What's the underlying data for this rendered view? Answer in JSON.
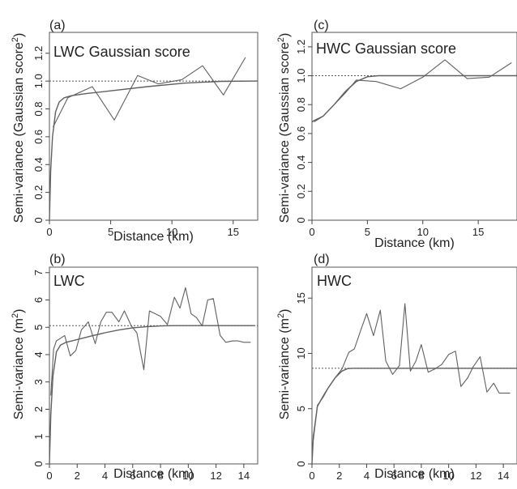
{
  "colors": {
    "data_line": "#606060",
    "model_curve": "#606060",
    "sill_line": "#555555",
    "axis": "#444444",
    "frame": "#555555"
  },
  "chart_data": [
    {
      "id": "a",
      "type": "line",
      "panel_label": "(a)",
      "title": "LWC Gaussian score",
      "xlabel": "Distance (km)",
      "ylabel": "Semi-variance (Gaussian score²)",
      "ylabel_main": "Semi-variance (Gaussian score",
      "ylabel_sup": "2",
      "ylabel_end": ")",
      "xlim": [
        0,
        17
      ],
      "ylim": [
        0,
        1.35
      ],
      "xticks": [
        0,
        5,
        10,
        15
      ],
      "xtick_labels": [
        "0",
        "5",
        "10",
        "15"
      ],
      "yticks": [
        0,
        0.2,
        0.4,
        0.6,
        0.8,
        1.0,
        1.2
      ],
      "ytick_labels": [
        "0",
        "0.2",
        "0.4",
        "0.6",
        "0.8",
        "1.0",
        "1.2"
      ],
      "series": [
        {
          "role": "empirical",
          "x": [
            0.3,
            1.5,
            3.5,
            5.3,
            7.2,
            8.9,
            10.8,
            12.5,
            14.2,
            16
          ],
          "y": [
            0.67,
            0.88,
            0.96,
            0.72,
            1.04,
            0.98,
            1.01,
            1.11,
            0.9,
            1.17
          ]
        },
        {
          "role": "model",
          "x": [
            0,
            0.1,
            0.25,
            0.5,
            0.8,
            1.2,
            1.8,
            3,
            5,
            8,
            11,
            14,
            17
          ],
          "y": [
            0,
            0.35,
            0.6,
            0.78,
            0.85,
            0.88,
            0.895,
            0.91,
            0.93,
            0.96,
            0.985,
            0.998,
            1.0
          ]
        }
      ],
      "sill": 1.0
    },
    {
      "id": "b",
      "type": "line",
      "panel_label": "(b)",
      "title": "LWC",
      "xlabel": "Distance (km)",
      "ylabel": "Semi-variance (m²)",
      "ylabel_main": "Semi-variance (m",
      "ylabel_sup": "2",
      "ylabel_end": ")",
      "xlim": [
        0,
        15
      ],
      "ylim": [
        0,
        7.2
      ],
      "xticks": [
        0,
        2,
        4,
        6,
        8,
        10,
        12,
        14
      ],
      "xtick_labels": [
        "0",
        "2",
        "4",
        "6",
        "8",
        "10",
        "12",
        "14"
      ],
      "yticks": [
        0,
        1,
        2,
        3,
        4,
        5,
        6,
        7
      ],
      "ytick_labels": [
        "0",
        "1",
        "2",
        "3",
        "4",
        "5",
        "6",
        "7"
      ],
      "series": [
        {
          "role": "empirical",
          "x": [
            0.1,
            0.3,
            0.5,
            0.8,
            1.1,
            1.5,
            1.9,
            2.3,
            2.8,
            3.3,
            3.7,
            4.1,
            4.5,
            5,
            5.4,
            5.9,
            6.3,
            6.8,
            7.2,
            7.6,
            8,
            8.5,
            9,
            9.4,
            9.8,
            10.2,
            10.6,
            11,
            11.4,
            11.8,
            12.3,
            12.7,
            13.2,
            13.6,
            14,
            14.5
          ],
          "y": [
            2.5,
            4.2,
            4.5,
            4.6,
            4.7,
            3.95,
            4.15,
            4.9,
            5.2,
            4.4,
            5.2,
            5.55,
            5.55,
            5.2,
            5.6,
            5.05,
            4.8,
            3.45,
            5.6,
            5.5,
            5.4,
            5.1,
            6.1,
            5.7,
            6.45,
            5.5,
            5.35,
            5.05,
            6.0,
            6.05,
            4.7,
            4.45,
            4.5,
            4.5,
            4.45,
            4.45
          ]
        },
        {
          "role": "model",
          "x": [
            0,
            0.1,
            0.25,
            0.5,
            0.8,
            1.2,
            2,
            3,
            4,
            5,
            6,
            7,
            8,
            9,
            10,
            12,
            14.8
          ],
          "y": [
            0,
            1.8,
            3.2,
            4.1,
            4.35,
            4.45,
            4.55,
            4.68,
            4.8,
            4.9,
            4.98,
            5.02,
            5.05,
            5.06,
            5.06,
            5.06,
            5.06
          ]
        }
      ],
      "sill": 5.06
    },
    {
      "id": "c",
      "type": "line",
      "panel_label": "(c)",
      "title": "HWC Gaussian score",
      "xlabel": "Distance (km)",
      "ylabel": "Semi-variance (Gaussian score²)",
      "ylabel_main": "Semi-variance (Gaussian score",
      "ylabel_sup": "2",
      "ylabel_end": ")",
      "xlim": [
        0,
        18.5
      ],
      "ylim": [
        0,
        1.3
      ],
      "xticks": [
        0,
        5,
        10,
        15
      ],
      "xtick_labels": [
        "0",
        "5",
        "10",
        "15"
      ],
      "yticks": [
        0,
        0.2,
        0.4,
        0.6,
        0.8,
        1.0,
        1.2
      ],
      "ytick_labels": [
        "0",
        "0.2",
        "0.4",
        "0.6",
        "0.8",
        "1.0",
        "1.2"
      ],
      "series": [
        {
          "role": "empirical",
          "x": [
            0.2,
            1,
            2,
            3,
            4,
            5.8,
            8,
            10,
            12,
            14,
            16,
            18
          ],
          "y": [
            0.68,
            0.72,
            0.8,
            0.88,
            0.97,
            0.96,
            0.91,
            0.99,
            1.11,
            0.98,
            0.99,
            1.09
          ]
        },
        {
          "role": "model",
          "x": [
            0,
            0.2,
            1,
            2,
            3,
            4,
            5,
            6,
            8,
            12,
            18.5
          ],
          "y": [
            0.68,
            0.69,
            0.72,
            0.8,
            0.89,
            0.96,
            0.993,
            1.0,
            1.0,
            1.0,
            1.0
          ]
        }
      ],
      "sill": 1.0
    },
    {
      "id": "d",
      "type": "line",
      "panel_label": "(d)",
      "title": "HWC",
      "xlabel": "Distance (km)",
      "ylabel": "Semi-variance (m²)",
      "ylabel_main": "Semi-variance (m",
      "ylabel_sup": "2",
      "ylabel_end": ")",
      "xlim": [
        0,
        15
      ],
      "ylim": [
        0,
        17.8
      ],
      "xticks": [
        0,
        2,
        4,
        6,
        8,
        10,
        12,
        14
      ],
      "xtick_labels": [
        "0",
        "2",
        "4",
        "6",
        "8",
        "10",
        "12",
        "14"
      ],
      "yticks": [
        0,
        5,
        10,
        15
      ],
      "ytick_labels": [
        "0",
        "5",
        "10",
        "15"
      ],
      "series": [
        {
          "role": "empirical",
          "x": [
            0.1,
            0.4,
            0.8,
            1.2,
            1.7,
            2.2,
            2.7,
            3.1,
            3.6,
            4,
            4.5,
            5,
            5.4,
            5.9,
            6.4,
            6.8,
            7.2,
            7.6,
            8,
            8.5,
            9,
            9.5,
            10,
            10.5,
            10.9,
            11.4,
            11.8,
            12.3,
            12.8,
            13.3,
            13.7,
            14.1,
            14.5
          ],
          "y": [
            2.2,
            5.3,
            6.0,
            6.9,
            7.8,
            8.6,
            10.1,
            10.4,
            12.2,
            13.6,
            11.6,
            13.9,
            9.3,
            8.1,
            8.9,
            14.5,
            8.4,
            9.3,
            10.8,
            8.3,
            8.6,
            9.0,
            9.9,
            10.2,
            7.0,
            7.8,
            8.8,
            9.7,
            6.5,
            7.3,
            6.4,
            6.4,
            6.4
          ]
        },
        {
          "role": "model",
          "x": [
            0,
            0.1,
            0.4,
            0.8,
            1.2,
            1.7,
            2.2,
            2.6,
            3,
            4,
            15
          ],
          "y": [
            0,
            2.5,
            5.2,
            6.1,
            6.9,
            7.8,
            8.4,
            8.62,
            8.65,
            8.65,
            8.65
          ]
        }
      ],
      "sill": 8.65
    }
  ]
}
